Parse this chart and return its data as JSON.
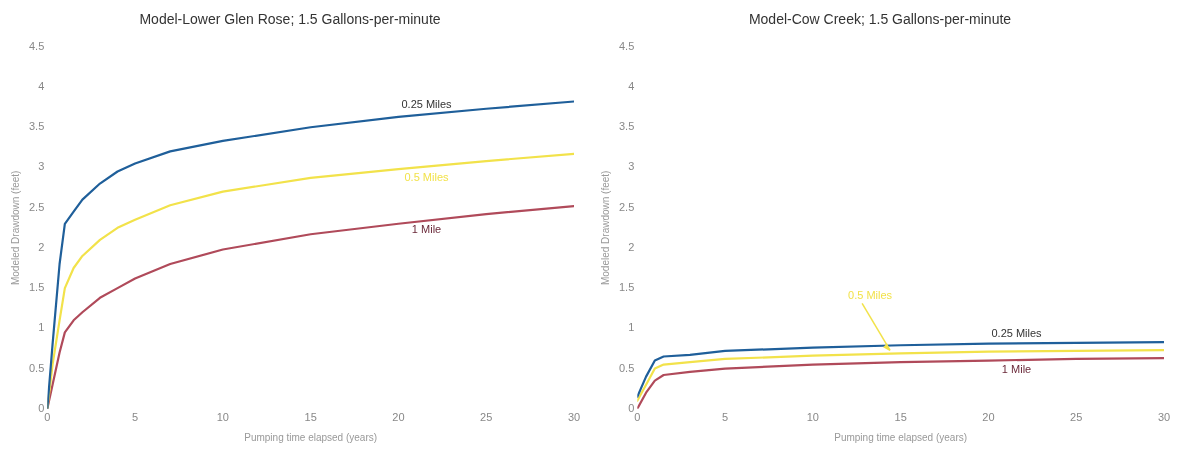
{
  "chart_data": [
    {
      "type": "line",
      "title": "Model-Lower Glen Rose; 1.5 Gallons-per-minute",
      "xlabel": "Pumping time elapsed (years)",
      "ylabel": "Modeled Drawdown (feet)",
      "xlim": [
        0,
        30
      ],
      "xticks": [
        0,
        5,
        10,
        15,
        20,
        25,
        30
      ],
      "ylim": [
        0,
        4.5
      ],
      "yticks": [
        0,
        {
          "value": 0.5,
          "label": "0.5"
        },
        1,
        {
          "value": 1.5,
          "label": "1.5"
        },
        2,
        {
          "value": 2.5,
          "label": "2.5"
        },
        3,
        {
          "value": 3.5,
          "label": "3.5"
        },
        4,
        {
          "value": 4.5,
          "label": "4.5"
        }
      ],
      "grid": false,
      "legend": false,
      "marker": "none",
      "line_style": "solid",
      "x": [
        0,
        0.3,
        0.7,
        1,
        1.5,
        2,
        3,
        4,
        5,
        7,
        10,
        15,
        20,
        25,
        30
      ],
      "series": [
        {
          "name": "0.25 Miles",
          "color": "#1f5f9a",
          "values": [
            0,
            0.8,
            1.8,
            2.3,
            2.45,
            2.6,
            2.8,
            2.95,
            3.05,
            3.2,
            3.33,
            3.5,
            3.63,
            3.73,
            3.82
          ]
        },
        {
          "name": "0.5 Miles",
          "color": "#f2e24a",
          "values": [
            0,
            0.55,
            1.1,
            1.5,
            1.75,
            1.9,
            2.1,
            2.25,
            2.35,
            2.53,
            2.7,
            2.87,
            2.98,
            3.08,
            3.17
          ]
        },
        {
          "name": "1 Mile",
          "color": "#b04a5a",
          "values": [
            0,
            0.3,
            0.7,
            0.95,
            1.1,
            1.2,
            1.38,
            1.5,
            1.62,
            1.8,
            1.98,
            2.17,
            2.3,
            2.42,
            2.52
          ]
        }
      ]
    },
    {
      "type": "line",
      "title": "Model-Cow Creek; 1.5 Gallons-per-minute",
      "xlabel": "Pumping time elapsed (years)",
      "ylabel": "Modeled Drawdown (feet)",
      "xlim": [
        0,
        30
      ],
      "xticks": [
        0,
        5,
        10,
        15,
        20,
        25,
        30
      ],
      "ylim": [
        0,
        4.5
      ],
      "yticks": [
        0,
        {
          "value": 0.5,
          "label": "0.5"
        },
        1,
        {
          "value": 1.5,
          "label": "1.5"
        },
        2,
        {
          "value": 2.5,
          "label": "2.5"
        },
        3,
        {
          "value": 3.5,
          "label": "3.5"
        },
        4,
        {
          "value": 4.5,
          "label": "4.5"
        }
      ],
      "grid": false,
      "legend": false,
      "marker": "none",
      "line_style": "solid",
      "x": [
        0,
        0.5,
        1,
        1.5,
        3,
        5,
        10,
        15,
        20,
        25,
        30
      ],
      "series": [
        {
          "name": "0.25 Miles",
          "color": "#1f5f9a",
          "values": [
            0.15,
            0.4,
            0.6,
            0.65,
            0.67,
            0.72,
            0.76,
            0.79,
            0.81,
            0.82,
            0.83
          ]
        },
        {
          "name": "0.5 Miles",
          "color": "#f2e24a",
          "values": [
            0.1,
            0.3,
            0.5,
            0.55,
            0.58,
            0.62,
            0.66,
            0.69,
            0.71,
            0.72,
            0.73
          ]
        },
        {
          "name": "1 Mile",
          "color": "#b04a5a",
          "values": [
            0,
            0.2,
            0.35,
            0.42,
            0.46,
            0.5,
            0.55,
            0.58,
            0.6,
            0.62,
            0.63
          ]
        }
      ]
    }
  ]
}
